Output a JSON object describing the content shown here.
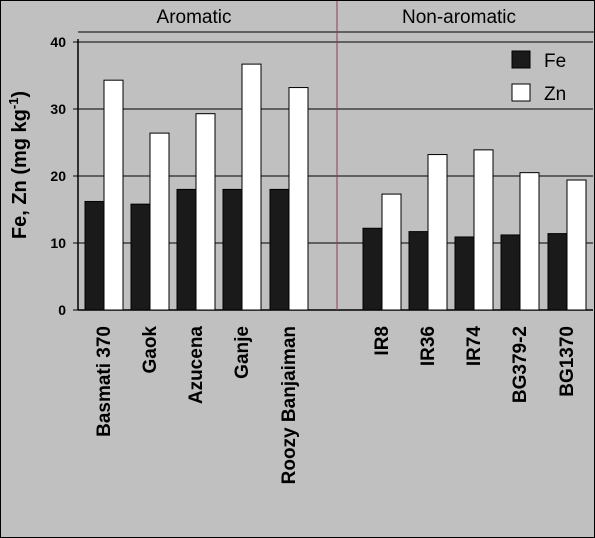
{
  "chart_data": {
    "type": "bar",
    "groups": [
      {
        "label": "Aromatic",
        "categories": [
          "Basmati 370",
          "Gaok",
          "Azucena",
          "Ganje",
          "Roozy Banjaiman"
        ]
      },
      {
        "label": "Non-aromatic",
        "categories": [
          "IR8",
          "IR36",
          "IR74",
          "BG379-2",
          "BG1370"
        ]
      }
    ],
    "categories": [
      "Basmati 370",
      "Gaok",
      "Azucena",
      "Ganje",
      "Roozy Banjaiman",
      "IR8",
      "IR36",
      "IR74",
      "BG379-2",
      "BG1370"
    ],
    "series": [
      {
        "name": "Fe",
        "color": "#1a1a1a",
        "values": [
          16.2,
          15.8,
          18.0,
          18.0,
          18.0,
          12.2,
          11.7,
          10.9,
          11.2,
          11.4
        ]
      },
      {
        "name": "Zn",
        "color": "#ffffff",
        "values": [
          34.3,
          26.4,
          29.3,
          36.7,
          33.2,
          17.3,
          23.2,
          23.9,
          20.5,
          19.4
        ]
      }
    ],
    "ylabel_main": "Fe, Zn (mg kg",
    "ylabel_sup": "-1",
    "ylabel_close": ")",
    "ylim": [
      0,
      40
    ],
    "yticks": [
      "0",
      "10",
      "20",
      "30",
      "40"
    ],
    "grid": true,
    "legend_position": "top-right",
    "background": "#c0c0c0",
    "group_divider_color": "#8b3a62"
  }
}
